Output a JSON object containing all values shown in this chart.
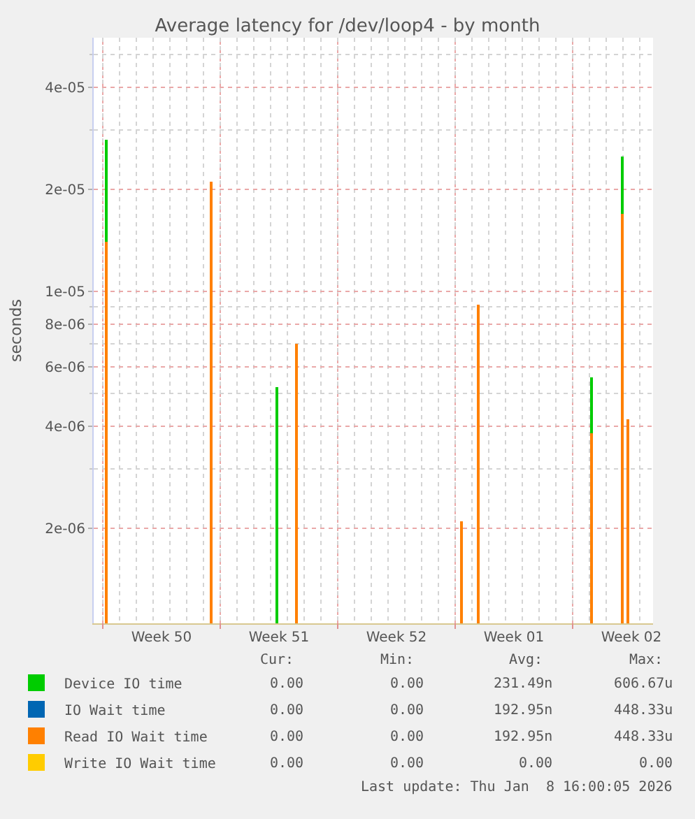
{
  "chart_data": {
    "type": "bar",
    "title": "Average latency for /dev/loop4 - by month",
    "ylabel": "seconds",
    "x": [
      "2025-12-07T04:00",
      "2025-12-13T10:00",
      "2025-12-17T09:00",
      "2025-12-18T12:00",
      "2025-12-28T08:00",
      "2025-12-29T08:00",
      "2026-01-05T02:00",
      "2026-01-06T22:00",
      "2026-01-07T06:00"
    ],
    "series": [
      {
        "name": "Device IO time",
        "color": "#00cc00",
        "values": [
          2.8e-05,
          null,
          5.2e-06,
          null,
          null,
          null,
          5.6e-06,
          2.5e-05,
          null
        ]
      },
      {
        "name": "IO Wait time",
        "color": "#0066b3",
        "values": [
          null,
          null,
          null,
          null,
          null,
          null,
          null,
          null,
          null
        ]
      },
      {
        "name": "Read IO Wait time",
        "color": "#ff8000",
        "values": [
          1.4e-05,
          2.1e-05,
          null,
          7e-06,
          2.1e-06,
          9.1e-06,
          3.8e-06,
          1.7e-05,
          4.2e-06
        ]
      },
      {
        "name": "Write IO Wait time",
        "color": "#ffcc00",
        "values": [
          null,
          null,
          null,
          null,
          null,
          null,
          null,
          null,
          null
        ]
      }
    ],
    "log": true,
    "ylim": [
      1.05e-06,
      5.6e-05
    ],
    "yticks": [
      {
        "value": 2e-06,
        "label": "2e-06"
      },
      {
        "value": 3e-06,
        "label": null
      },
      {
        "value": 4e-06,
        "label": "4e-06"
      },
      {
        "value": 5e-06,
        "label": null
      },
      {
        "value": 6e-06,
        "label": "6e-06"
      },
      {
        "value": 7e-06,
        "label": null
      },
      {
        "value": 8e-06,
        "label": "8e-06"
      },
      {
        "value": 9e-06,
        "label": null
      },
      {
        "value": 1e-05,
        "label": "1e-05"
      },
      {
        "value": 2e-05,
        "label": "2e-05"
      },
      {
        "value": 3e-05,
        "label": null
      },
      {
        "value": 4e-05,
        "label": "4e-05"
      },
      {
        "value": 5e-05,
        "label": null
      }
    ],
    "xlim": [
      "2025-12-06T11:00",
      "2026-01-08T19:00"
    ],
    "xticks": [
      {
        "value": "2025-12-07",
        "label": null
      },
      {
        "value": "2025-12-08",
        "label": null
      },
      {
        "value": "2025-12-09",
        "label": null
      },
      {
        "value": "2025-12-10",
        "label": null
      },
      {
        "value": "2025-12-10T12:00",
        "label": "Week 50"
      },
      {
        "value": "2025-12-11",
        "label": null
      },
      {
        "value": "2025-12-12",
        "label": null
      },
      {
        "value": "2025-12-13",
        "label": null
      },
      {
        "value": "2025-12-14",
        "label": null
      },
      {
        "value": "2025-12-15",
        "label": null
      },
      {
        "value": "2025-12-16",
        "label": null
      },
      {
        "value": "2025-12-17",
        "label": null
      },
      {
        "value": "2025-12-17T12:00",
        "label": "Week 51"
      },
      {
        "value": "2025-12-18",
        "label": null
      },
      {
        "value": "2025-12-19",
        "label": null
      },
      {
        "value": "2025-12-20",
        "label": null
      },
      {
        "value": "2025-12-21",
        "label": null
      },
      {
        "value": "2025-12-22",
        "label": null
      },
      {
        "value": "2025-12-23",
        "label": null
      },
      {
        "value": "2025-12-24",
        "label": null
      },
      {
        "value": "2025-12-24T12:00",
        "label": "Week 52"
      },
      {
        "value": "2025-12-25",
        "label": null
      },
      {
        "value": "2025-12-26",
        "label": null
      },
      {
        "value": "2025-12-27",
        "label": null
      },
      {
        "value": "2025-12-28",
        "label": null
      },
      {
        "value": "2025-12-29",
        "label": null
      },
      {
        "value": "2025-12-30",
        "label": null
      },
      {
        "value": "2025-12-31",
        "label": null
      },
      {
        "value": "2025-12-31T12:00",
        "label": "Week 01"
      },
      {
        "value": "2026-01-01",
        "label": null
      },
      {
        "value": "2026-01-02",
        "label": null
      },
      {
        "value": "2026-01-03",
        "label": null
      },
      {
        "value": "2026-01-04",
        "label": null
      },
      {
        "value": "2026-01-05",
        "label": null
      },
      {
        "value": "2026-01-06",
        "label": null
      },
      {
        "value": "2026-01-07",
        "label": null
      },
      {
        "value": "2026-01-07T12:00",
        "label": "Week 02"
      },
      {
        "value": "2026-01-08",
        "label": null
      }
    ],
    "grid": true,
    "legend": "bottom left",
    "annotations": [
      "Cur:",
      "Min:",
      "Avg:",
      "Max:",
      "0.00",
      "0.00",
      "231.49n",
      "606.67u",
      "0.00",
      "0.00",
      "192.95n",
      "448.33u",
      "0.00",
      "0.00",
      "192.95n",
      "448.33u",
      "0.00",
      "0.00",
      "0.00",
      "0.00",
      "Last update: Thu Jan  8 16:00:05 2026"
    ]
  }
}
